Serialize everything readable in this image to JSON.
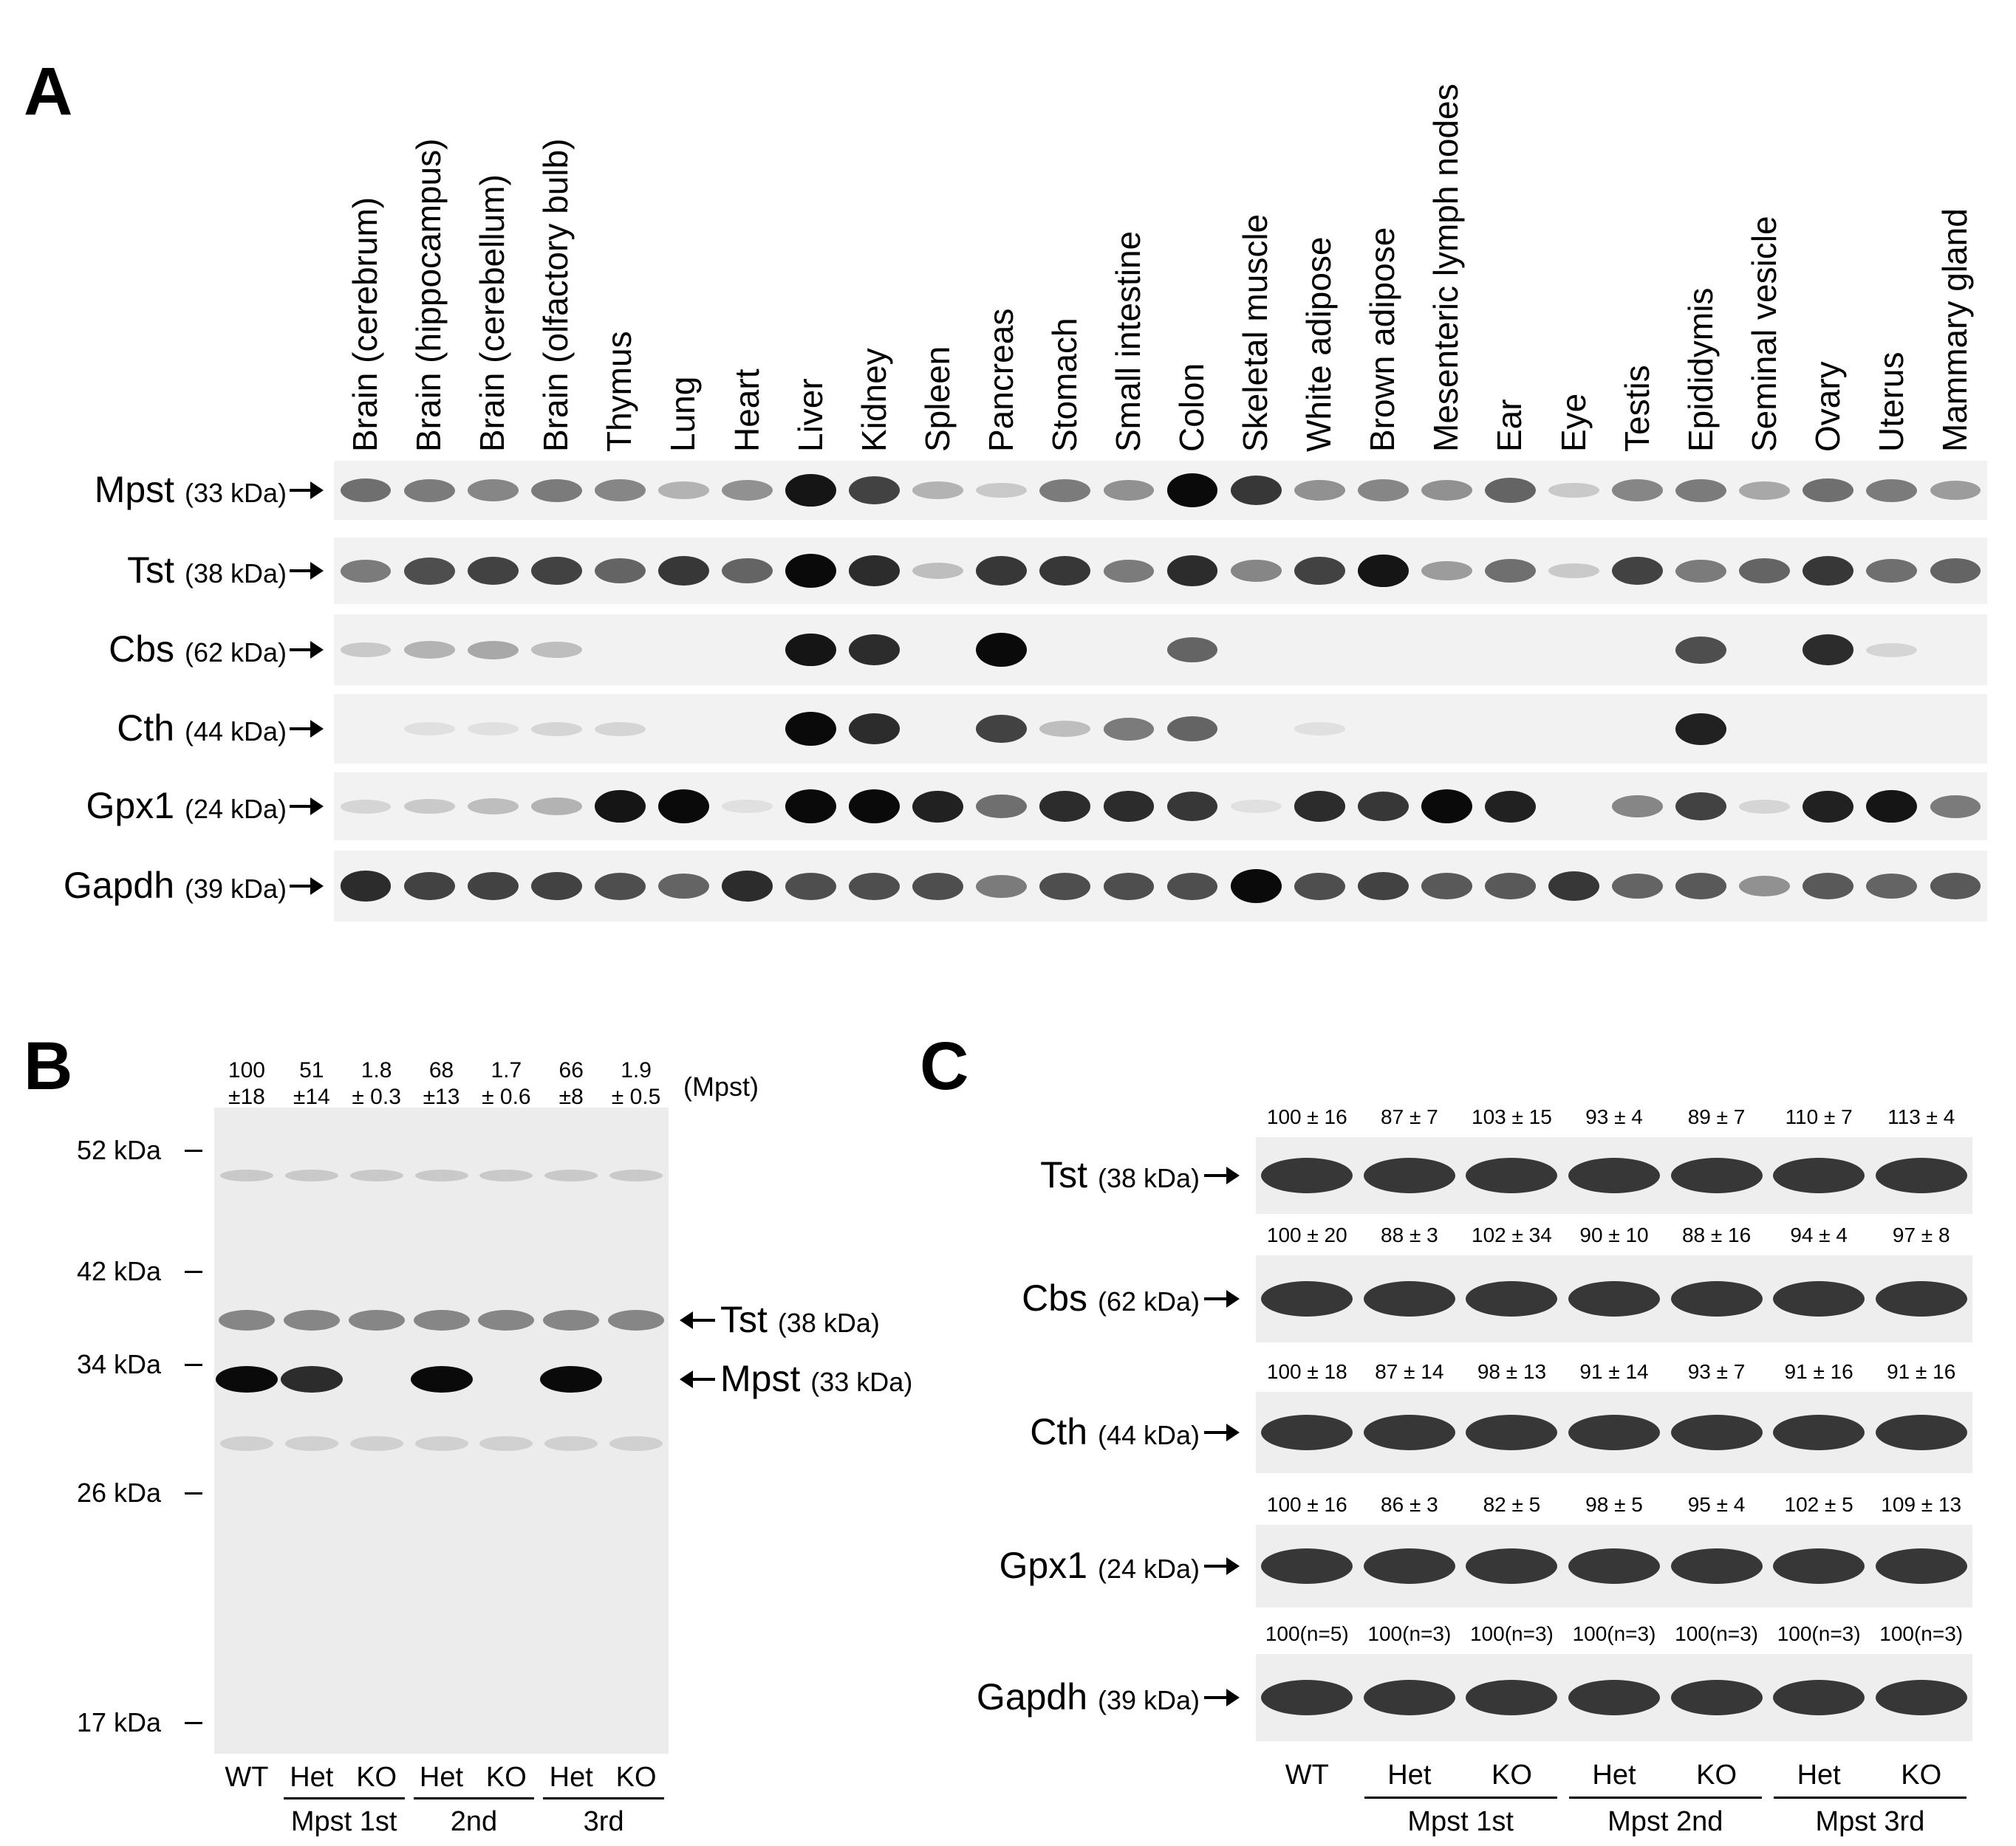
{
  "panels": {
    "A": {
      "letter": "A",
      "lanes": [
        "Brain (cerebrum)",
        "Brain (hippocampus)",
        "Brain (cerebellum)",
        "Brain (olfactory bulb)",
        "Thymus",
        "Lung",
        "Heart",
        "Liver",
        "Kidney",
        "Spleen",
        "Pancreas",
        "Stomach",
        "Small intestine",
        "Colon",
        "Skeletal muscle",
        "White adipose",
        "Brown adipose",
        "Mesenteric lymph nodes",
        "Ear",
        "Eye",
        "Testis",
        "Epididymis",
        "Seminal vesicle",
        "Ovary",
        "Uterus",
        "Mammary gland"
      ],
      "rows": [
        {
          "protein": "Mpst",
          "kda": "(33 kDa)",
          "levels": [
            0.55,
            0.5,
            0.45,
            0.5,
            0.45,
            0.25,
            0.4,
            0.95,
            0.75,
            0.25,
            0.15,
            0.5,
            0.4,
            1.0,
            0.8,
            0.4,
            0.45,
            0.4,
            0.6,
            0.15,
            0.45,
            0.5,
            0.3,
            0.55,
            0.5,
            0.35
          ]
        },
        {
          "protein": "Tst",
          "kda": "(38 kDa)",
          "levels": [
            0.5,
            0.7,
            0.75,
            0.75,
            0.6,
            0.8,
            0.6,
            1.0,
            0.85,
            0.2,
            0.8,
            0.8,
            0.5,
            0.85,
            0.45,
            0.75,
            0.95,
            0.35,
            0.55,
            0.15,
            0.75,
            0.5,
            0.6,
            0.8,
            0.55,
            0.6
          ]
        },
        {
          "protein": "Cbs",
          "kda": "(62 kDa)",
          "levels": [
            0.15,
            0.25,
            0.3,
            0.2,
            0.0,
            0.0,
            0.0,
            0.95,
            0.85,
            0.0,
            1.0,
            0.0,
            0.0,
            0.6,
            0.0,
            0.0,
            0.0,
            0.0,
            0.0,
            0.0,
            0.0,
            0.7,
            0.0,
            0.85,
            0.1,
            0.0
          ]
        },
        {
          "protein": "Cth",
          "kda": "(44 kDa)",
          "levels": [
            0.0,
            0.05,
            0.05,
            0.1,
            0.1,
            0.0,
            0.0,
            1.0,
            0.85,
            0.0,
            0.75,
            0.2,
            0.5,
            0.6,
            0.0,
            0.05,
            0.0,
            0.0,
            0.0,
            0.0,
            0.0,
            0.9,
            0.0,
            0.0,
            0.0,
            0.0
          ]
        },
        {
          "protein": "Gpx1",
          "kda": "(24 kDa)",
          "levels": [
            0.1,
            0.15,
            0.2,
            0.25,
            0.95,
            1.0,
            0.05,
            1.0,
            1.0,
            0.9,
            0.55,
            0.85,
            0.85,
            0.8,
            0.05,
            0.85,
            0.8,
            1.0,
            0.9,
            0.0,
            0.45,
            0.75,
            0.1,
            0.9,
            0.95,
            0.5
          ]
        },
        {
          "protein": "Gapdh",
          "kda": "(39 kDa)",
          "levels": [
            0.85,
            0.75,
            0.75,
            0.75,
            0.7,
            0.6,
            0.85,
            0.7,
            0.7,
            0.7,
            0.5,
            0.7,
            0.7,
            0.7,
            1.0,
            0.7,
            0.75,
            0.65,
            0.65,
            0.8,
            0.6,
            0.65,
            0.4,
            0.65,
            0.6,
            0.65
          ]
        }
      ]
    },
    "B": {
      "letter": "B",
      "quant_label": "(Mpst)",
      "quant": [
        {
          "top": "100",
          "bottom": "±18"
        },
        {
          "top": "51",
          "bottom": "±14"
        },
        {
          "top": "1.8",
          "bottom": "± 0.3"
        },
        {
          "top": "68",
          "bottom": "±13"
        },
        {
          "top": "1.7",
          "bottom": "± 0.6"
        },
        {
          "top": "66",
          "bottom": "±8"
        },
        {
          "top": "1.9",
          "bottom": "± 0.5"
        }
      ],
      "markers": [
        "52 kDa",
        "42 kDa",
        "34 kDa",
        "26 kDa",
        "17 kDa"
      ],
      "tst_label": "Tst",
      "tst_kda": "(38 kDa)",
      "mpst_label": "Mpst",
      "mpst_kda": "(33 kDa)",
      "mpst_levels": [
        1.0,
        0.85,
        0.0,
        1.0,
        0.0,
        1.0,
        0.0
      ],
      "lanes": [
        "WT",
        "Het",
        "KO",
        "Het",
        "KO",
        "Het",
        "KO"
      ],
      "groups": [
        "Mpst 1st",
        "2nd",
        "3rd"
      ]
    },
    "C": {
      "letter": "C",
      "rows": [
        {
          "protein": "Tst",
          "kda": "(38 kDa)",
          "values": [
            "100 ± 16",
            "87 ± 7",
            "103 ± 15",
            "93 ± 4",
            "89 ± 7",
            "110 ± 7",
            "113 ± 4"
          ]
        },
        {
          "protein": "Cbs",
          "kda": "(62 kDa)",
          "values": [
            "100 ± 20",
            "88 ± 3",
            "102 ± 34",
            "90 ± 10",
            "88 ± 16",
            "94 ± 4",
            "97 ± 8"
          ]
        },
        {
          "protein": "Cth",
          "kda": "(44 kDa)",
          "values": [
            "100 ± 18",
            "87 ± 14",
            "98 ± 13",
            "91 ± 14",
            "93 ± 7",
            "91 ± 16",
            "91 ± 16"
          ]
        },
        {
          "protein": "Gpx1",
          "kda": "(24 kDa)",
          "values": [
            "100 ± 16",
            "86 ± 3",
            "82 ± 5",
            "98 ± 5",
            "95 ± 4",
            "102 ± 5",
            "109 ± 13"
          ]
        },
        {
          "protein": "Gapdh",
          "kda": "(39 kDa)",
          "values": [
            "100(n=5)",
            "100(n=3)",
            "100(n=3)",
            "100(n=3)",
            "100(n=3)",
            "100(n=3)",
            "100(n=3)"
          ]
        }
      ],
      "lanes": [
        "WT",
        "Het",
        "KO",
        "Het",
        "KO",
        "Het",
        "KO"
      ],
      "groups": [
        "Mpst 1st",
        "Mpst 2nd",
        "Mpst 3rd"
      ]
    }
  }
}
